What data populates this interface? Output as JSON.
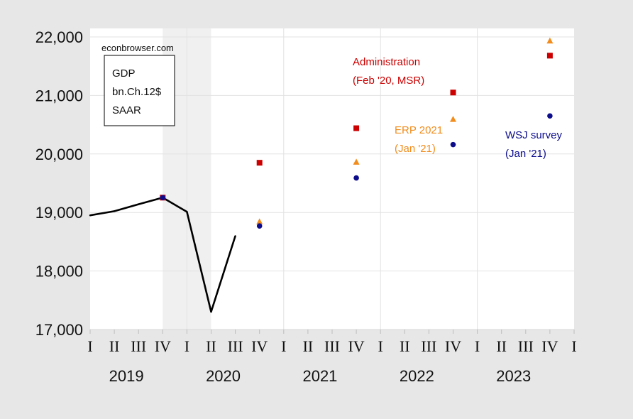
{
  "chart_data": {
    "type": "line",
    "title": "",
    "xlabel": "",
    "ylabel": "",
    "ylim": [
      17000,
      22000
    ],
    "yticks": [
      17000,
      18000,
      19000,
      20000,
      21000,
      22000
    ],
    "ytick_labels": [
      "17,000",
      "18,000",
      "19,000",
      "20,000",
      "21,000",
      "22,000"
    ],
    "quarter_labels": [
      "I",
      "II",
      "III",
      "IV"
    ],
    "year_labels": [
      "2019",
      "2020",
      "2021",
      "2022",
      "2023"
    ],
    "recession_shading": [
      "2019Q4",
      "2020Q2"
    ],
    "grid": true,
    "watermark": "econbrowser.com",
    "info_box": [
      "GDP",
      "bn.Ch.12$",
      "SAAR"
    ],
    "series": [
      {
        "kind": "line",
        "color": "#000000",
        "x": [
          "2019Q1",
          "2019Q2",
          "2019Q3",
          "2019Q4",
          "2020Q1",
          "2020Q2",
          "2020Q3"
        ],
        "values": [
          18951,
          19022,
          19141,
          19254,
          19011,
          17303,
          18597
        ]
      },
      {
        "label": [
          "Administration",
          "(Feb '20, MSR)"
        ],
        "kind": "square",
        "color": "#cc0000",
        "x": [
          "2019Q4",
          "2020Q4",
          "2021Q4",
          "2022Q4",
          "2023Q4"
        ],
        "values": [
          19254,
          19850,
          20440,
          21050,
          21680
        ]
      },
      {
        "label": [
          "ERP 2021",
          "(Jan '21)"
        ],
        "kind": "triangle",
        "color": "#f28c1c",
        "x": [
          "2020Q4",
          "2021Q4",
          "2022Q4",
          "2023Q4"
        ],
        "values": [
          18840,
          19860,
          20590,
          21930
        ]
      },
      {
        "label": [
          "WSJ survey",
          "(Jan '21)"
        ],
        "kind": "circle",
        "color": "#0d0d8c",
        "x": [
          "2019Q4",
          "2020Q4",
          "2021Q4",
          "2022Q4",
          "2023Q4"
        ],
        "values": [
          19254,
          18770,
          19590,
          20160,
          20650
        ]
      }
    ]
  }
}
